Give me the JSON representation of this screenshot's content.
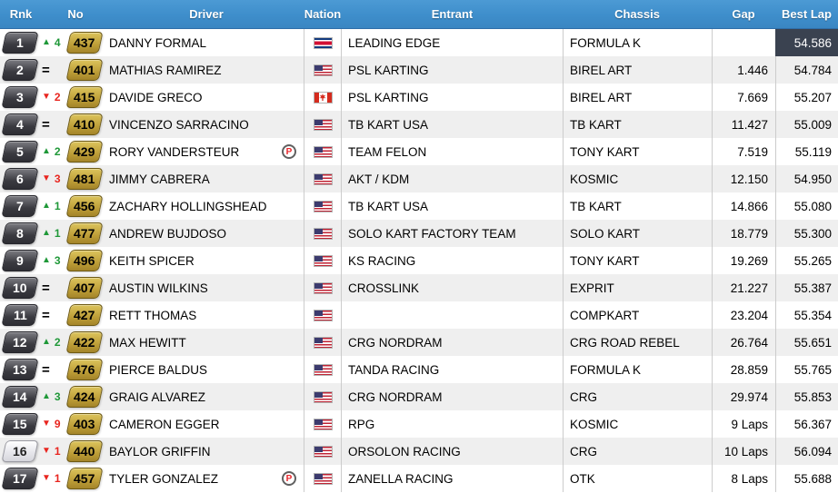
{
  "header": {
    "columns": [
      "Rnk",
      "No",
      "Driver",
      "Nation",
      "Entrant",
      "Chassis",
      "Gap",
      "Best Lap"
    ]
  },
  "icons": {
    "up": "▲",
    "down": "▼",
    "same": "=",
    "penalty": "P",
    "flag_names": {
      "usa": "usa-flag-icon",
      "crc": "costa-rica-flag-icon",
      "can": "canada-flag-icon"
    }
  },
  "colors": {
    "header_blue": "#3e8ecb",
    "row_alt": "#efefef",
    "up_green": "#1f9838",
    "down_red": "#e8251f",
    "number_gold": "#bb9b35",
    "rank_dark": "#3a3a40",
    "fastest_bg": "#3a4250"
  },
  "table": {
    "rows": [
      {
        "rank": "1",
        "change": {
          "dir": "up",
          "value": "4"
        },
        "no": "437",
        "driver": "DANNY FORMAL",
        "penalty": false,
        "nation": "crc",
        "entrant": "LEADING EDGE",
        "chassis": "FORMULA K",
        "gap": "",
        "best_lap": "54.586",
        "fastest": true,
        "light_rank": false
      },
      {
        "rank": "2",
        "change": {
          "dir": "same",
          "value": ""
        },
        "no": "401",
        "driver": "MATHIAS RAMIREZ",
        "penalty": false,
        "nation": "usa",
        "entrant": "PSL KARTING",
        "chassis": "BIREL ART",
        "gap": "1.446",
        "best_lap": "54.784",
        "fastest": false,
        "light_rank": false
      },
      {
        "rank": "3",
        "change": {
          "dir": "down",
          "value": "2"
        },
        "no": "415",
        "driver": "DAVIDE GRECO",
        "penalty": false,
        "nation": "can",
        "entrant": "PSL KARTING",
        "chassis": "BIREL ART",
        "gap": "7.669",
        "best_lap": "55.207",
        "fastest": false,
        "light_rank": false
      },
      {
        "rank": "4",
        "change": {
          "dir": "same",
          "value": ""
        },
        "no": "410",
        "driver": "VINCENZO SARRACINO",
        "penalty": false,
        "nation": "usa",
        "entrant": "TB KART USA",
        "chassis": "TB KART",
        "gap": "11.427",
        "best_lap": "55.009",
        "fastest": false,
        "light_rank": false
      },
      {
        "rank": "5",
        "change": {
          "dir": "up",
          "value": "2"
        },
        "no": "429",
        "driver": "RORY VANDERSTEUR",
        "penalty": true,
        "nation": "usa",
        "entrant": "TEAM FELON",
        "chassis": "TONY KART",
        "gap": "7.519",
        "best_lap": "55.119",
        "fastest": false,
        "light_rank": false
      },
      {
        "rank": "6",
        "change": {
          "dir": "down",
          "value": "3"
        },
        "no": "481",
        "driver": "JIMMY CABRERA",
        "penalty": false,
        "nation": "usa",
        "entrant": "AKT / KDM",
        "chassis": "KOSMIC",
        "gap": "12.150",
        "best_lap": "54.950",
        "fastest": false,
        "light_rank": false
      },
      {
        "rank": "7",
        "change": {
          "dir": "up",
          "value": "1"
        },
        "no": "456",
        "driver": "ZACHARY HOLLINGSHEAD",
        "penalty": false,
        "nation": "usa",
        "entrant": "TB KART USA",
        "chassis": "TB KART",
        "gap": "14.866",
        "best_lap": "55.080",
        "fastest": false,
        "light_rank": false
      },
      {
        "rank": "8",
        "change": {
          "dir": "up",
          "value": "1"
        },
        "no": "477",
        "driver": "ANDREW BUJDOSO",
        "penalty": false,
        "nation": "usa",
        "entrant": "SOLO KART FACTORY TEAM",
        "chassis": "SOLO KART",
        "gap": "18.779",
        "best_lap": "55.300",
        "fastest": false,
        "light_rank": false
      },
      {
        "rank": "9",
        "change": {
          "dir": "up",
          "value": "3"
        },
        "no": "496",
        "driver": "KEITH SPICER",
        "penalty": false,
        "nation": "usa",
        "entrant": "KS RACING",
        "chassis": "TONY KART",
        "gap": "19.269",
        "best_lap": "55.265",
        "fastest": false,
        "light_rank": false
      },
      {
        "rank": "10",
        "change": {
          "dir": "same",
          "value": ""
        },
        "no": "407",
        "driver": "AUSTIN WILKINS",
        "penalty": false,
        "nation": "usa",
        "entrant": "CROSSLINK",
        "chassis": "EXPRIT",
        "gap": "21.227",
        "best_lap": "55.387",
        "fastest": false,
        "light_rank": false
      },
      {
        "rank": "11",
        "change": {
          "dir": "same",
          "value": ""
        },
        "no": "427",
        "driver": "RETT THOMAS",
        "penalty": false,
        "nation": "usa",
        "entrant": "",
        "chassis": "COMPKART",
        "gap": "23.204",
        "best_lap": "55.354",
        "fastest": false,
        "light_rank": false
      },
      {
        "rank": "12",
        "change": {
          "dir": "up",
          "value": "2"
        },
        "no": "422",
        "driver": "MAX HEWITT",
        "penalty": false,
        "nation": "usa",
        "entrant": "CRG NORDRAM",
        "chassis": "CRG ROAD REBEL",
        "gap": "26.764",
        "best_lap": "55.651",
        "fastest": false,
        "light_rank": false
      },
      {
        "rank": "13",
        "change": {
          "dir": "same",
          "value": ""
        },
        "no": "476",
        "driver": "PIERCE BALDUS",
        "penalty": false,
        "nation": "usa",
        "entrant": "TANDA RACING",
        "chassis": "FORMULA K",
        "gap": "28.859",
        "best_lap": "55.765",
        "fastest": false,
        "light_rank": false
      },
      {
        "rank": "14",
        "change": {
          "dir": "up",
          "value": "3"
        },
        "no": "424",
        "driver": "GRAIG ALVAREZ",
        "penalty": false,
        "nation": "usa",
        "entrant": "CRG NORDRAM",
        "chassis": "CRG",
        "gap": "29.974",
        "best_lap": "55.853",
        "fastest": false,
        "light_rank": false
      },
      {
        "rank": "15",
        "change": {
          "dir": "down",
          "value": "9"
        },
        "no": "403",
        "driver": "CAMERON EGGER",
        "penalty": false,
        "nation": "usa",
        "entrant": "RPG",
        "chassis": "KOSMIC",
        "gap": "9 Laps",
        "best_lap": "56.367",
        "fastest": false,
        "light_rank": false
      },
      {
        "rank": "16",
        "change": {
          "dir": "down",
          "value": "1"
        },
        "no": "440",
        "driver": "BAYLOR GRIFFIN",
        "penalty": false,
        "nation": "usa",
        "entrant": "ORSOLON RACING",
        "chassis": "CRG",
        "gap": "10 Laps",
        "best_lap": "56.094",
        "fastest": false,
        "light_rank": true
      },
      {
        "rank": "17",
        "change": {
          "dir": "down",
          "value": "1"
        },
        "no": "457",
        "driver": "TYLER GONZALEZ",
        "penalty": true,
        "nation": "usa",
        "entrant": "ZANELLA RACING",
        "chassis": "OTK",
        "gap": "8 Laps",
        "best_lap": "55.688",
        "fastest": false,
        "light_rank": false
      }
    ]
  }
}
